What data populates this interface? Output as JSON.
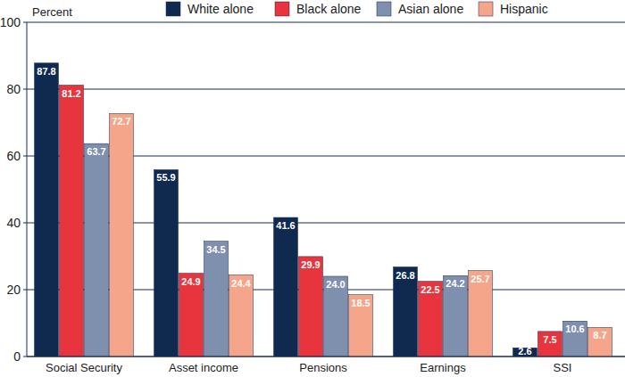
{
  "chart_data": {
    "type": "bar",
    "y_label": "Percent",
    "categories": [
      "Social Security",
      "Asset income",
      "Pensions",
      "Earnings",
      "SSI"
    ],
    "series": [
      {
        "name": "White alone",
        "color": "#0f2a4e",
        "values": [
          87.8,
          55.9,
          41.6,
          26.8,
          2.6
        ]
      },
      {
        "name": "Black alone",
        "color": "#e8343c",
        "values": [
          81.2,
          24.9,
          29.9,
          22.5,
          7.5
        ]
      },
      {
        "name": "Asian alone",
        "color": "#7f8fae",
        "values": [
          63.7,
          34.5,
          24.0,
          24.2,
          10.6
        ]
      },
      {
        "name": "Hispanic",
        "color": "#f4a58a",
        "values": [
          72.7,
          24.4,
          18.5,
          25.7,
          8.7
        ]
      }
    ],
    "ylim": [
      0,
      100
    ],
    "yticks": [
      0,
      20,
      40,
      60,
      80,
      100
    ],
    "grid": true,
    "legend": "top",
    "data_labels": true
  }
}
